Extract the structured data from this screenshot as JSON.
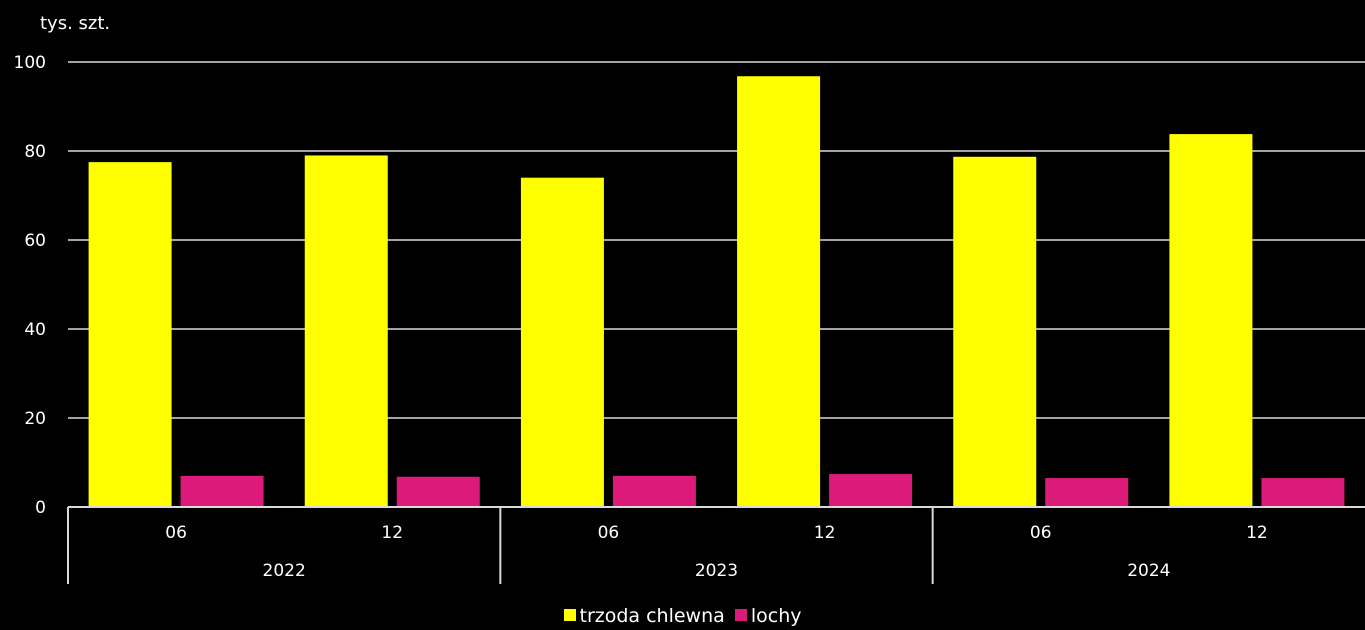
{
  "chart_data": {
    "type": "bar",
    "unit_label": "tys. szt.",
    "ylim": [
      0,
      100
    ],
    "yticks": [
      0,
      20,
      40,
      60,
      80,
      100
    ],
    "grid": true,
    "legend_position": "bottom-center",
    "groups": [
      {
        "year": "2022",
        "months": [
          "06",
          "12"
        ]
      },
      {
        "year": "2023",
        "months": [
          "06",
          "12"
        ]
      },
      {
        "year": "2024",
        "months": [
          "06",
          "12"
        ]
      }
    ],
    "categories": [
      "2022 06",
      "2022 12",
      "2023 06",
      "2023 12",
      "2024 06",
      "2024 12"
    ],
    "series": [
      {
        "name": "trzoda chlewna",
        "color": "#ffff00",
        "values": [
          77.5,
          79.0,
          74.0,
          96.8,
          78.7,
          83.8
        ]
      },
      {
        "name": "lochy",
        "color": "#dc1a7a",
        "values": [
          7.0,
          6.8,
          7.0,
          7.4,
          6.5,
          6.5
        ]
      }
    ]
  }
}
